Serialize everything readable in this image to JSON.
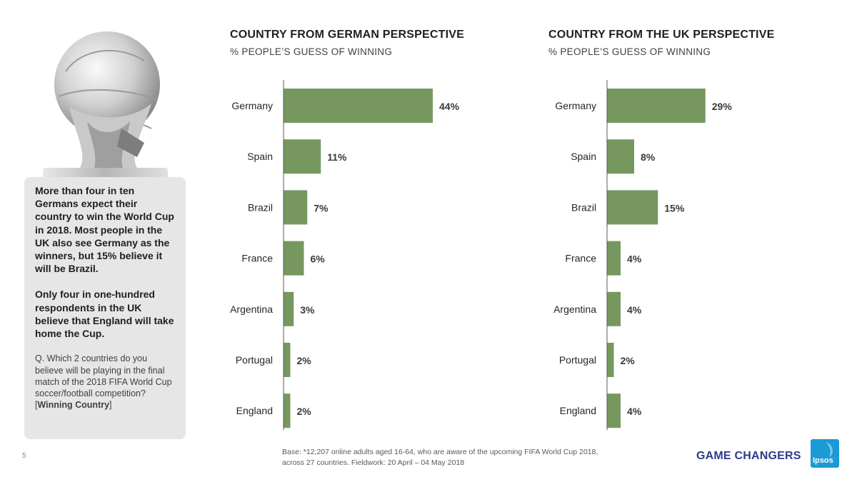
{
  "callout": {
    "headline1": "More than four in ten Germans expect their country to win the World Cup in 2018. Most people in the UK also see Germany as the winners, but 15% believe it will be Brazil.",
    "headline2": "Only four in one-hundred respondents in the UK believe that England will take home the Cup.",
    "question_prefix": "Q. Which 2 countries do you believe will be playing in the final match of the 2018 FIFA World Cup soccer/football competition? [",
    "question_highlight": "Winning Country",
    "question_suffix": "]"
  },
  "colors": {
    "bar": "#76985f",
    "axis": "#595959",
    "callout_bg": "#e6e6e6",
    "brand": "#2e3a8c",
    "logo": "#1b9ad6"
  },
  "chart_data": [
    {
      "type": "bar",
      "orientation": "horizontal",
      "title": "COUNTRY FROM GERMAN PERSPECTIVE",
      "subtitle": "% PEOPLE’S GUESS OF WINNING",
      "categories": [
        "Germany",
        "Spain",
        "Brazil",
        "France",
        "Argentina",
        "Portugal",
        "England"
      ],
      "values": [
        44,
        11,
        7,
        6,
        3,
        2,
        2
      ],
      "value_labels": [
        "44%",
        "11%",
        "7%",
        "6%",
        "3%",
        "2%",
        "2%"
      ],
      "xlim": [
        0,
        50
      ],
      "grid": false
    },
    {
      "type": "bar",
      "orientation": "horizontal",
      "title": "COUNTRY FROM THE UK PERSPECTIVE",
      "subtitle": "% PEOPLE’S GUESS OF WINNING",
      "categories": [
        "Germany",
        "Spain",
        "Brazil",
        "France",
        "Argentina",
        "Portugal",
        "England"
      ],
      "values": [
        29,
        8,
        15,
        4,
        4,
        2,
        4
      ],
      "value_labels": [
        "29%",
        "8%",
        "15%",
        "4%",
        "4%",
        "2%",
        "4%"
      ],
      "xlim": [
        0,
        50
      ],
      "grid": false
    }
  ],
  "footer": {
    "page_number": "5",
    "base_line1": "Base: *12,207 online adults aged 16-64, who are aware of the upcoming FIFA World Cup 2018,",
    "base_line2": "across 27 countries. Fieldwork:  20 April – 04 May 2018",
    "brand": "GAME CHANGERS",
    "logo_text": "Ipsos"
  }
}
